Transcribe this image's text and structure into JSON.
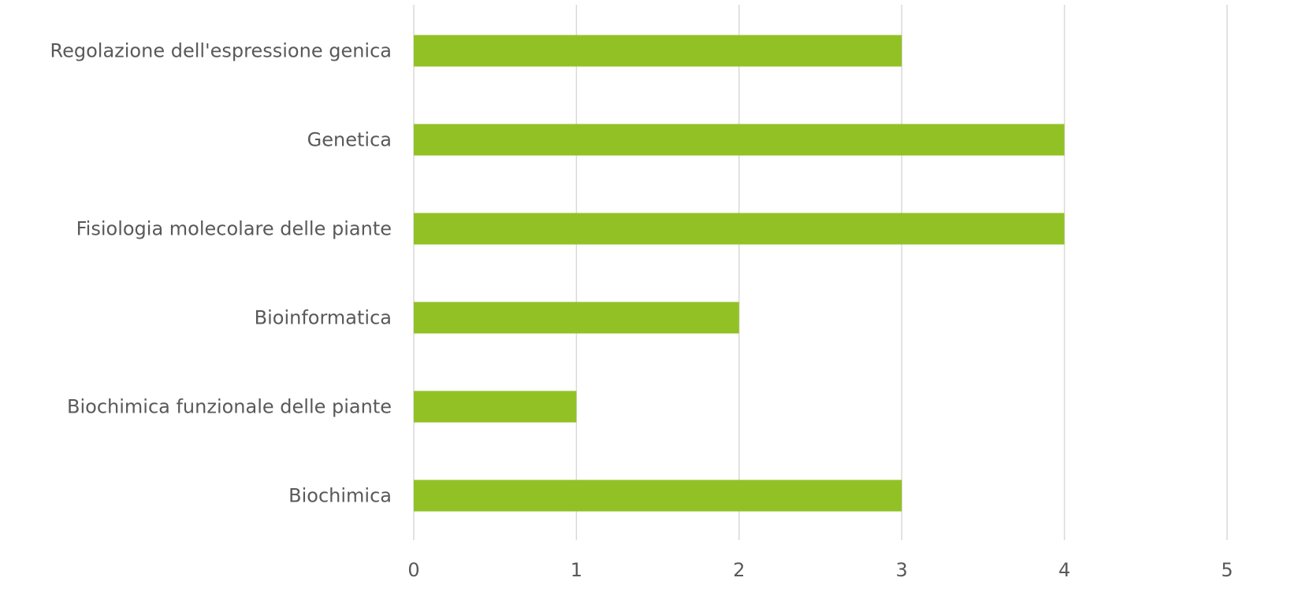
{
  "chart_data": {
    "type": "bar",
    "orientation": "horizontal",
    "categories": [
      "Regolazione dell'espressione genica",
      "Genetica",
      "Fisiologia molecolare delle piante",
      "Bioinformatica",
      "Biochimica funzionale delle piante",
      "Biochimica"
    ],
    "values": [
      3,
      4,
      4,
      2,
      1,
      3
    ],
    "xlim": [
      0,
      5
    ],
    "x_ticks": [
      "0",
      "1",
      "2",
      "3",
      "4",
      "5"
    ],
    "grid": true,
    "bar_color": "#92c126",
    "grid_color": "#d9d9d9",
    "text_color": "#595959"
  }
}
